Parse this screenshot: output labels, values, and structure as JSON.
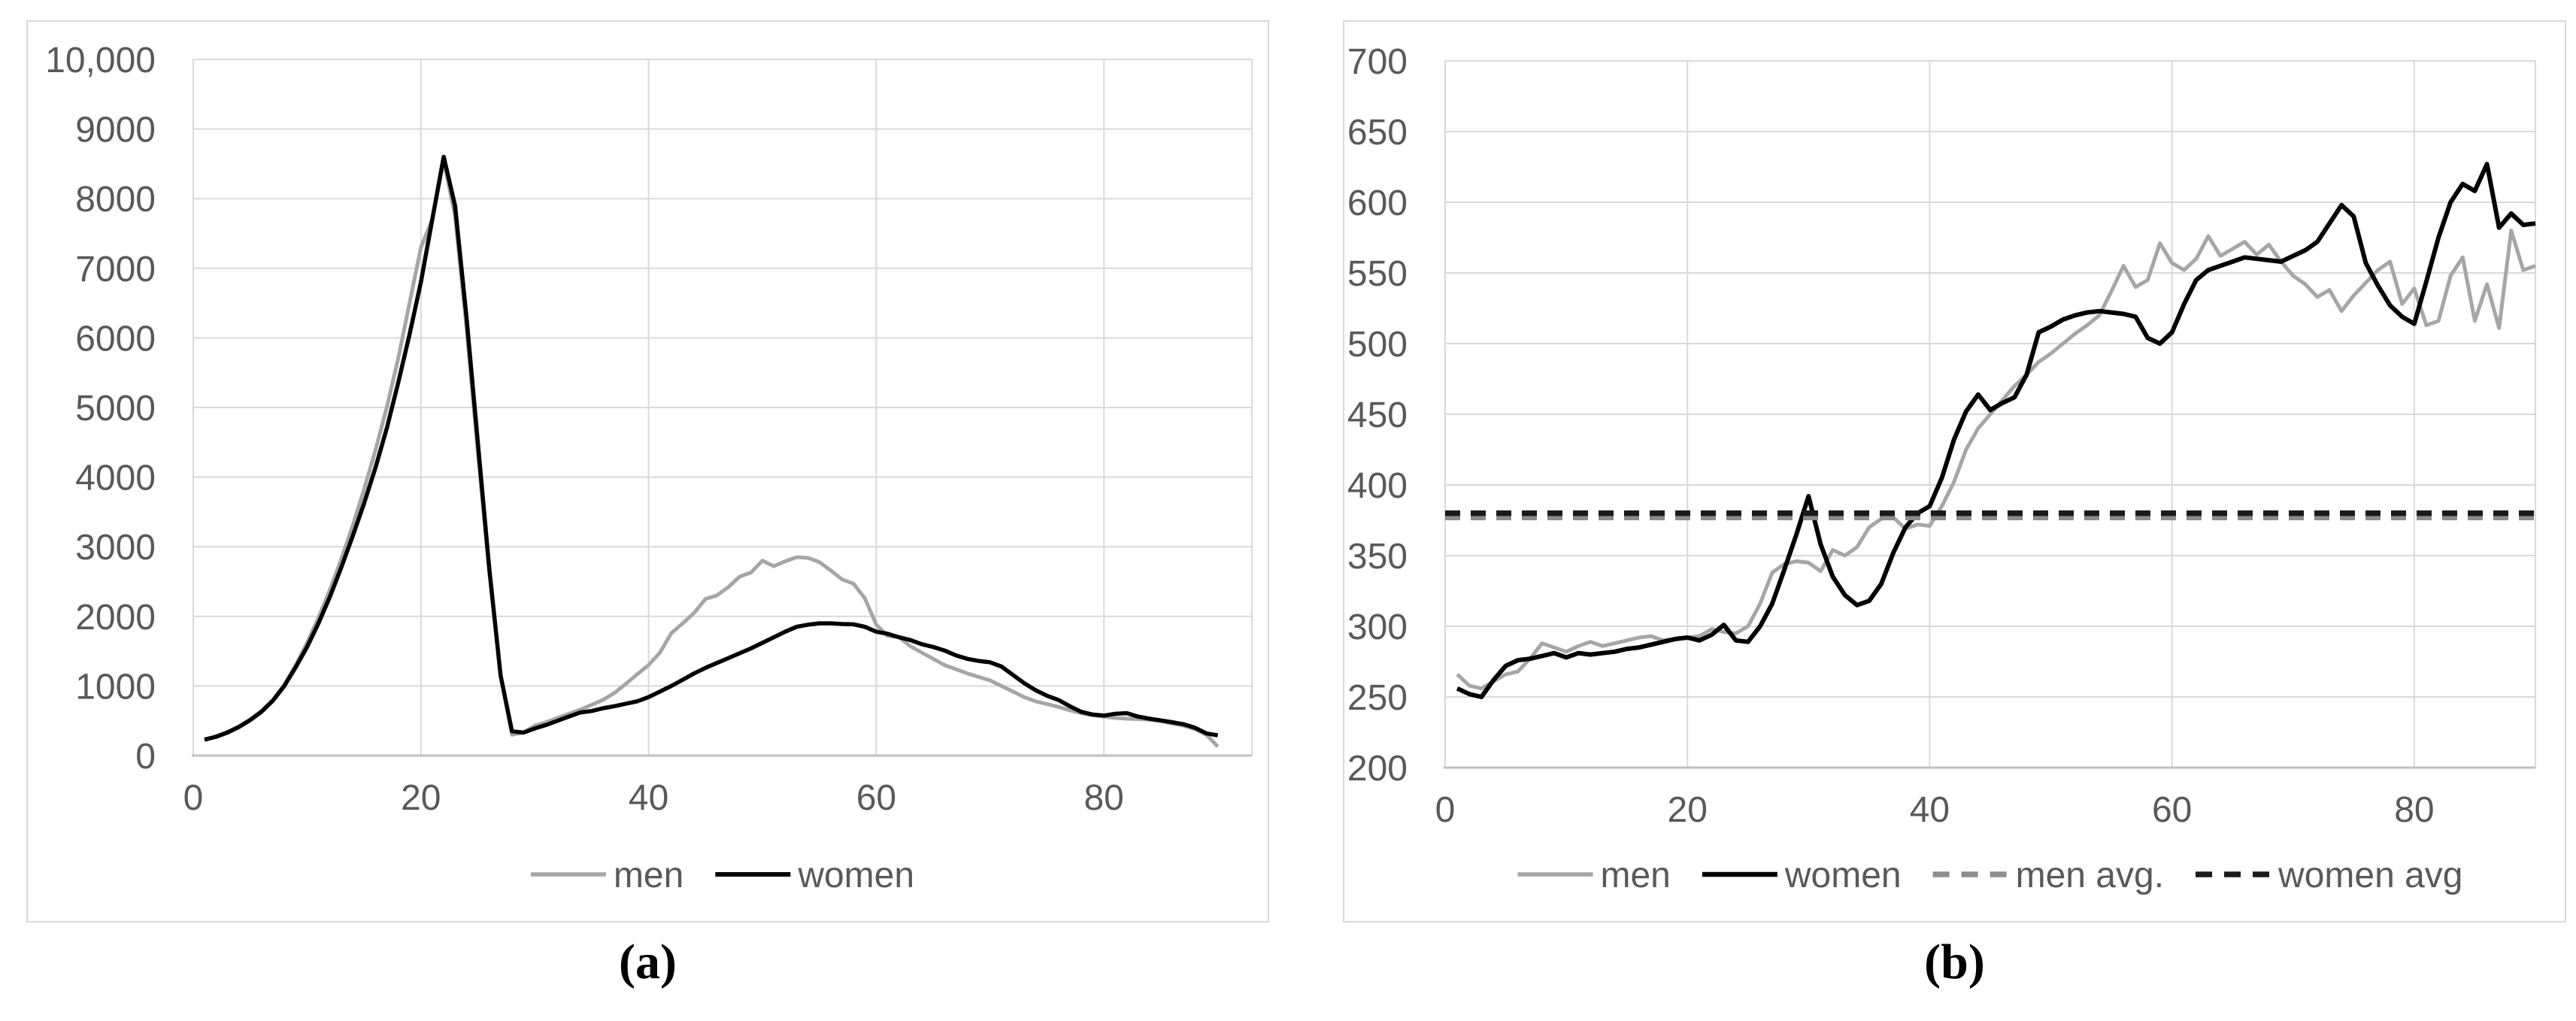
{
  "figure": {
    "background": "#ffffff",
    "panel_border_color": "#d9d9d9",
    "gridline_color": "#d9d9d9",
    "axis_line_color": "#bfbfbf",
    "tick_label_color": "#595959",
    "legend_text_color": "#595959"
  },
  "captions": {
    "a": "(a)",
    "b": "(b)"
  },
  "chart_data": [
    {
      "id": "a",
      "type": "line",
      "caption": "(a)",
      "title": "",
      "xlabel": "",
      "ylabel": "",
      "grid": true,
      "legend_position": "bottom",
      "x_start": 1,
      "x_axis": {
        "min": 0,
        "axis_max": 93,
        "ticks": [
          0,
          20,
          40,
          60,
          80
        ]
      },
      "y_axis": {
        "min": 0,
        "max": 10000,
        "tick_step": 1000,
        "tick_labels": [
          "0",
          "1000",
          "2000",
          "3000",
          "4000",
          "5000",
          "6000",
          "7000",
          "8000",
          "9000",
          "10,000"
        ]
      },
      "series": [
        {
          "name": "men",
          "color": "#a6a6a6",
          "width": 5,
          "dash": "",
          "values": [
            220,
            280,
            340,
            420,
            520,
            640,
            800,
            1020,
            1300,
            1620,
            1980,
            2380,
            2820,
            3300,
            3820,
            4380,
            5000,
            5700,
            6500,
            7300,
            7700,
            8550,
            7750,
            6150,
            4350,
            2650,
            1150,
            300,
            330,
            430,
            480,
            540,
            600,
            660,
            730,
            800,
            900,
            1030,
            1170,
            1300,
            1480,
            1760,
            1900,
            2050,
            2250,
            2300,
            2420,
            2570,
            2630,
            2800,
            2720,
            2790,
            2850,
            2840,
            2780,
            2660,
            2530,
            2470,
            2260,
            1880,
            1720,
            1700,
            1570,
            1480,
            1390,
            1300,
            1240,
            1180,
            1130,
            1080,
            1000,
            920,
            840,
            780,
            740,
            700,
            650,
            610,
            580,
            560,
            540,
            530,
            525,
            515,
            495,
            460,
            430,
            380,
            300,
            130
          ]
        },
        {
          "name": "women",
          "color": "#000000",
          "width": 5.5,
          "dash": "",
          "values": [
            230,
            270,
            330,
            410,
            510,
            630,
            790,
            1000,
            1270,
            1560,
            1900,
            2280,
            2700,
            3150,
            3620,
            4130,
            4700,
            5350,
            6050,
            6800,
            7700,
            8600,
            7900,
            6300,
            4500,
            2700,
            1150,
            350,
            330,
            390,
            440,
            500,
            560,
            620,
            640,
            680,
            710,
            745,
            780,
            840,
            920,
            1000,
            1090,
            1180,
            1260,
            1330,
            1400,
            1470,
            1540,
            1620,
            1700,
            1780,
            1850,
            1880,
            1900,
            1900,
            1890,
            1885,
            1850,
            1780,
            1750,
            1700,
            1660,
            1600,
            1560,
            1510,
            1440,
            1390,
            1360,
            1340,
            1280,
            1160,
            1040,
            940,
            860,
            800,
            710,
            630,
            590,
            575,
            600,
            610,
            560,
            530,
            505,
            480,
            450,
            400,
            320,
            290
          ]
        }
      ]
    },
    {
      "id": "b",
      "type": "line",
      "caption": "(b)",
      "title": "",
      "xlabel": "",
      "ylabel": "",
      "grid": true,
      "legend_position": "bottom",
      "x_start": 1,
      "x_axis": {
        "min": 0,
        "axis_max": 90,
        "ticks": [
          0,
          20,
          40,
          60,
          80
        ]
      },
      "y_axis": {
        "min": 200,
        "max": 700,
        "tick_step": 50,
        "tick_labels": [
          "200",
          "250",
          "300",
          "350",
          "400",
          "450",
          "500",
          "550",
          "600",
          "650",
          "700"
        ]
      },
      "series": [
        {
          "name": "men",
          "color": "#a6a6a6",
          "width": 5,
          "dash": "",
          "values": [
            266,
            258,
            256,
            261,
            266,
            268,
            277,
            288,
            285,
            282,
            286,
            289,
            286,
            288,
            290,
            292,
            293,
            290,
            291,
            292,
            293,
            298,
            296,
            295,
            300,
            316,
            338,
            344,
            346,
            345,
            339,
            354,
            350,
            356,
            370,
            376,
            377,
            369,
            372,
            371,
            385,
            402,
            425,
            440,
            450,
            460,
            470,
            478,
            487,
            493,
            500,
            507,
            513,
            520,
            537,
            555,
            540,
            545,
            571,
            557,
            552,
            560,
            576,
            562,
            567,
            572,
            563,
            570,
            558,
            548,
            542,
            533,
            538,
            523,
            534,
            543,
            552,
            558,
            528,
            539,
            513,
            516,
            548,
            561,
            516,
            542,
            511,
            580,
            552,
            555
          ]
        },
        {
          "name": "women",
          "color": "#000000",
          "width": 6,
          "dash": "",
          "values": [
            256,
            252,
            250,
            262,
            272,
            276,
            277,
            279,
            281,
            278,
            281,
            280,
            281,
            282,
            284,
            285,
            287,
            289,
            291,
            292,
            290,
            294,
            301,
            290,
            289,
            300,
            316,
            340,
            365,
            392,
            358,
            335,
            322,
            315,
            318,
            330,
            352,
            370,
            380,
            385,
            405,
            432,
            452,
            464,
            453,
            458,
            462,
            478,
            508,
            512,
            517,
            520,
            522,
            523,
            522,
            521,
            519,
            504,
            500,
            508,
            528,
            545,
            552,
            555,
            558,
            561,
            560,
            559,
            558,
            562,
            566,
            572,
            585,
            598,
            590,
            557,
            541,
            527,
            519,
            514,
            544,
            575,
            600,
            613,
            608,
            627,
            582,
            592,
            584,
            585
          ]
        },
        {
          "name": "men avg.",
          "color": "#8c8c8c",
          "width": 7.5,
          "dash": "20 14",
          "constant": 377
        },
        {
          "name": "women avg",
          "color": "#1a1a1a",
          "width": 7.5,
          "dash": "20 14",
          "constant": 380
        }
      ]
    }
  ]
}
